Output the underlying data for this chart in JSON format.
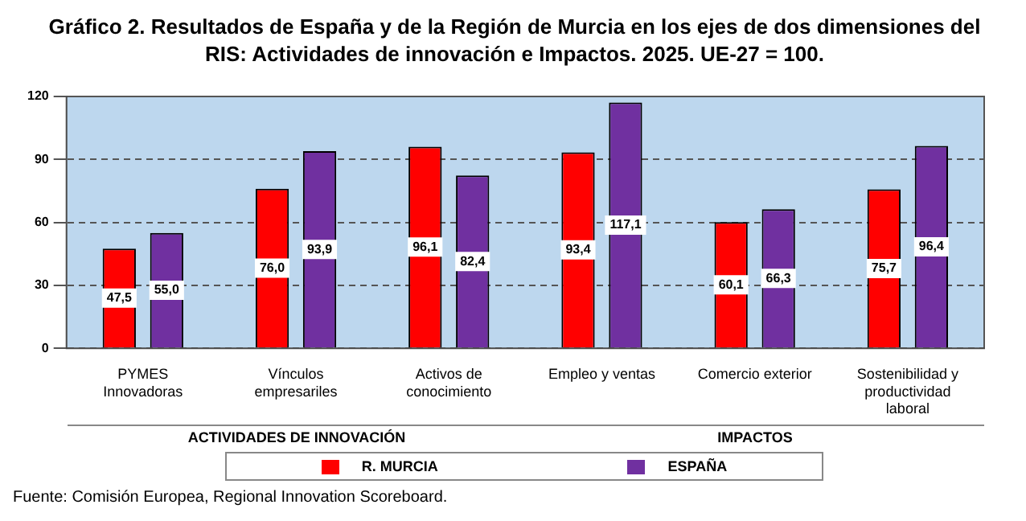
{
  "chart_data": {
    "type": "bar",
    "title": "Gráfico 2. Resultados de España y de la Región de Murcia en los ejes de dos dimensiones del RIS: Actividades de innovación e Impactos. 2025. UE-27 = 100.",
    "categories": [
      "PYMES Innovadoras",
      "Vínculos empresariles",
      "Activos de conocimiento",
      "Empleo y ventas",
      "Comercio exterior",
      "Sostenibilidad y productividad laboral"
    ],
    "series": [
      {
        "name": "R. MURCIA",
        "color": "#ff0000",
        "values": [
          47.5,
          76.0,
          96.1,
          93.4,
          60.1,
          75.7
        ],
        "value_labels": [
          "47,5",
          "76,0",
          "96,1",
          "93,4",
          "60,1",
          "75,7"
        ]
      },
      {
        "name": "ESPAÑA",
        "color": "#7030a0",
        "values": [
          55.0,
          93.9,
          82.4,
          117.1,
          66.3,
          96.4
        ],
        "value_labels": [
          "55,0",
          "93,9",
          "82,4",
          "117,1",
          "66,3",
          "96,4"
        ]
      }
    ],
    "ylim": [
      0,
      120
    ],
    "yticks": [
      0,
      30,
      60,
      90,
      120
    ],
    "grid": "y",
    "legend": "bottom",
    "annotations": [
      "ACTIVIDADES DE INNOVACIÓN",
      "IMPACTOS",
      "Fuente: Comisión Europea, Regional Innovation Scoreboard."
    ]
  }
}
